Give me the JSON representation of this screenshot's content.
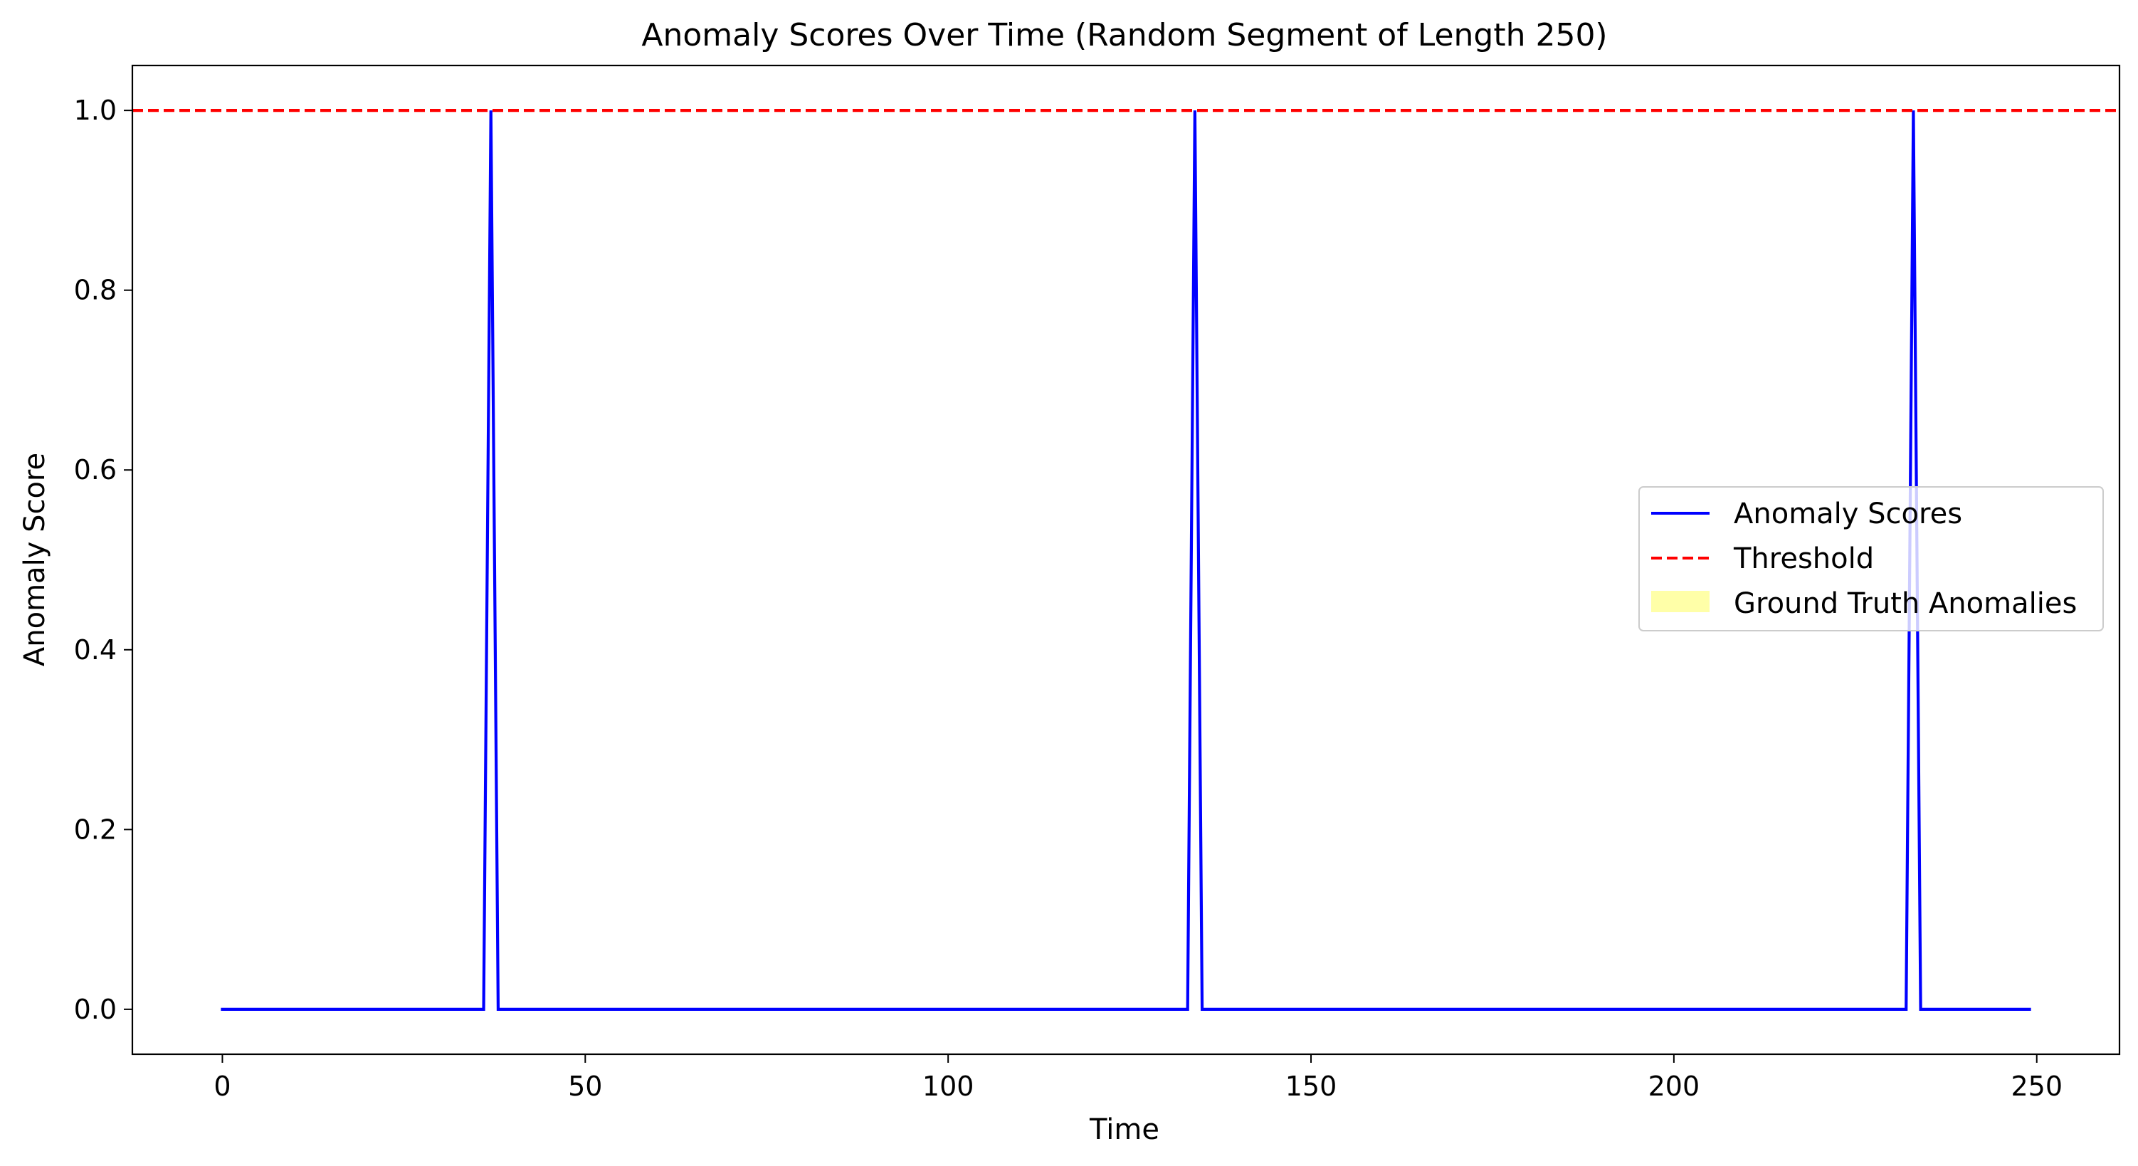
{
  "chart_data": {
    "type": "line",
    "title": "Anomaly Scores Over Time (Random Segment of Length 250)",
    "xlabel": "Time",
    "ylabel": "Anomaly Score",
    "xlim": [
      -12.4,
      261.4
    ],
    "ylim": [
      -0.05,
      1.05
    ],
    "xticks": [
      0,
      50,
      100,
      150,
      200,
      250
    ],
    "yticks": [
      0.0,
      0.2,
      0.4,
      0.6,
      0.8,
      1.0
    ],
    "xtick_labels": [
      "0",
      "50",
      "100",
      "150",
      "200",
      "250"
    ],
    "ytick_labels": [
      "0.0",
      "0.2",
      "0.4",
      "0.6",
      "0.8",
      "1.0"
    ],
    "grid": false,
    "legend_position": "center-right",
    "series": [
      {
        "name": "Anomaly Scores",
        "color": "#0000ff",
        "style": "solid",
        "x": [
          0,
          36,
          37,
          38,
          133,
          134,
          135,
          232,
          233,
          234,
          249
        ],
        "y": [
          0,
          0,
          1,
          0,
          0,
          1,
          0,
          0,
          1,
          0,
          0
        ]
      },
      {
        "name": "Threshold",
        "color": "#ff0000",
        "style": "dashed",
        "hline": 1.0
      },
      {
        "name": "Ground Truth Anomalies",
        "color": "#ffff99",
        "style": "fill",
        "spans": []
      }
    ]
  }
}
